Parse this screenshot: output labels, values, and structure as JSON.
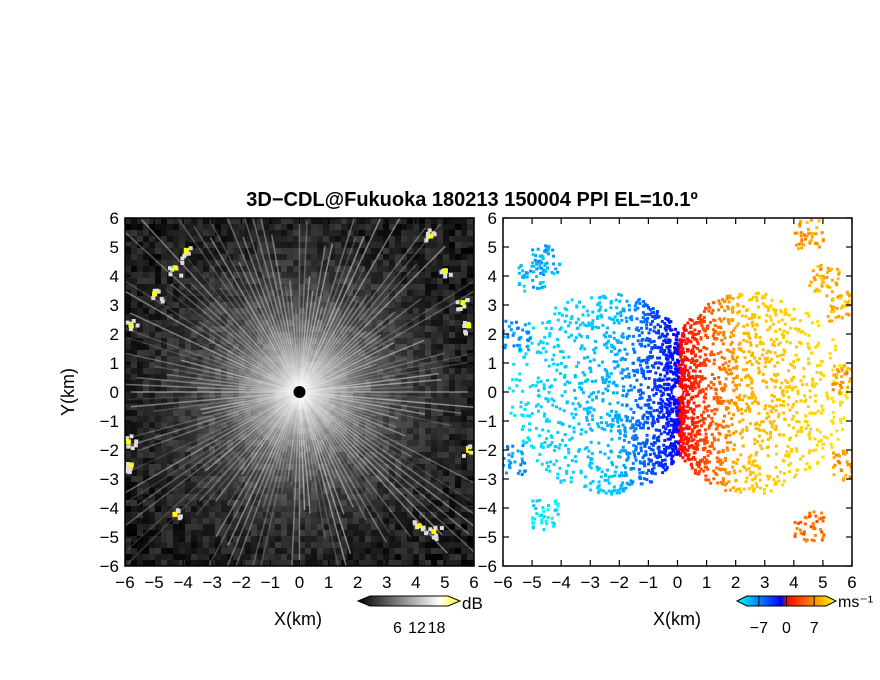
{
  "figure": {
    "title": "3D−CDL@Fukuoka 180213 150004 PPI EL=10.1º"
  },
  "chart_data": [
    {
      "type": "heatmap",
      "panel": "reflectivity",
      "xlabel": "X(km)",
      "ylabel": "Y(km)",
      "xlim": [
        -6,
        6
      ],
      "ylim": [
        -6,
        6
      ],
      "xticks": [
        "−6",
        "−5",
        "−4",
        "−3",
        "−2",
        "−1",
        "0",
        "1",
        "2",
        "3",
        "4",
        "5",
        "6"
      ],
      "yticks": [
        "−6",
        "−5",
        "−4",
        "−3",
        "−2",
        "−1",
        "0",
        "1",
        "2",
        "3",
        "4",
        "5",
        "6"
      ],
      "colorbar": {
        "unit": "dB",
        "range": [
          0,
          24
        ],
        "ticks": [
          6,
          12,
          18
        ],
        "tick_labels": [
          "6",
          "12",
          "18"
        ],
        "colors": [
          "#000000",
          "#ffffff",
          "#ffff00"
        ]
      },
      "description_features": {
        "radar_center": [
          0,
          0
        ],
        "bright_echo_points_km": [
          [
            -3.9,
            4.9
          ],
          [
            -4.3,
            4.3
          ],
          [
            -5.0,
            3.4
          ],
          [
            -5.8,
            2.3
          ],
          [
            -5.9,
            -1.7
          ],
          [
            -5.8,
            -2.5
          ],
          [
            -4.3,
            -4.2
          ],
          [
            5.0,
            4.2
          ],
          [
            5.6,
            3.1
          ],
          [
            5.8,
            2.3
          ],
          [
            5.8,
            -2.0
          ],
          [
            4.6,
            -4.8
          ],
          [
            4.1,
            -4.6
          ],
          [
            4.5,
            5.4
          ]
        ]
      }
    },
    {
      "type": "heatmap",
      "panel": "doppler_velocity",
      "xlabel": "X(km)",
      "ylabel": "",
      "xlim": [
        -6,
        6
      ],
      "ylim": [
        -6,
        6
      ],
      "xticks": [
        "−6",
        "−5",
        "−4",
        "−3",
        "−2",
        "−1",
        "0",
        "1",
        "2",
        "3",
        "4",
        "5",
        "6"
      ],
      "yticks": [
        "−6",
        "−5",
        "−4",
        "−3",
        "−2",
        "−1",
        "0",
        "1",
        "2",
        "3",
        "4",
        "5",
        "6"
      ],
      "colorbar": {
        "unit": "ms⁻¹",
        "range": [
          -10,
          10
        ],
        "ticks": [
          -7,
          0,
          7
        ],
        "tick_labels": [
          "−7",
          "0",
          "7"
        ],
        "colors": [
          "#00ffff",
          "#0000ff",
          "#ff0000",
          "#ffff00"
        ]
      },
      "description_features": {
        "negative_side": "west (x<0)",
        "positive_side": "east (x>0)"
      }
    }
  ]
}
